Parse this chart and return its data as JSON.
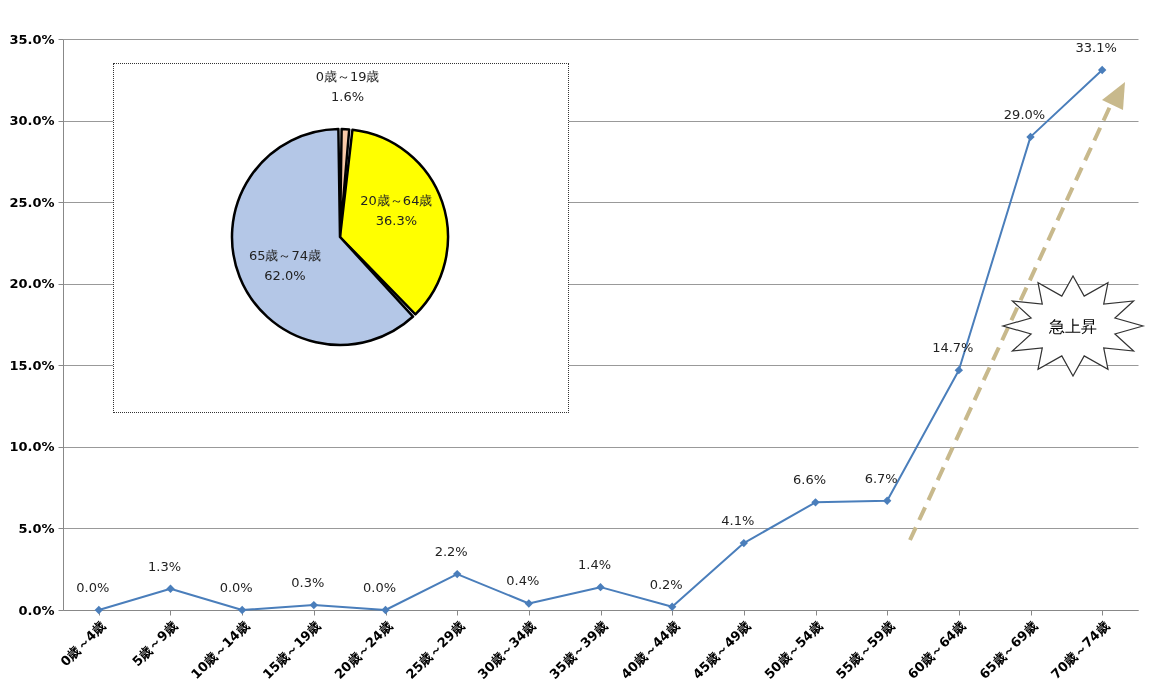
{
  "chart_data": [
    {
      "type": "line",
      "categories": [
        "0歳～4歳",
        "5歳～9歳",
        "10歳～14歳",
        "15歳～19歳",
        "20歳～24歳",
        "25歳～29歳",
        "30歳～34歳",
        "35歳～39歳",
        "40歳～44歳",
        "45歳～49歳",
        "50歳～54歳",
        "55歳～59歳",
        "60歳～64歳",
        "65歳～69歳",
        "70歳～74歳"
      ],
      "series": [
        {
          "color": "#4a7ebb",
          "values": [
            0,
            1.3,
            0,
            0.3,
            0,
            2.2,
            0.4,
            1.4,
            0.2,
            4.1,
            6.6,
            6.7,
            14.7,
            29.0,
            33.1
          ],
          "value_labels": [
            "0.0%",
            "1.3%",
            "0.0%",
            "0.3%",
            "0.0%",
            "2.2%",
            "0.4%",
            "1.4%",
            "0.2%",
            "4.1%",
            "6.6%",
            "6.7%",
            "14.7%",
            "29.0%",
            "33.1%"
          ]
        }
      ],
      "ylim": [
        0,
        35
      ],
      "yticks": [
        {
          "value": 0,
          "label": "0.0%"
        },
        {
          "value": 5,
          "label": "5.0%"
        },
        {
          "value": 10,
          "label": "10.0%"
        },
        {
          "value": 15,
          "label": "15.0%"
        },
        {
          "value": 20,
          "label": "20.0%"
        },
        {
          "value": 25,
          "label": "25.0%"
        },
        {
          "value": 30,
          "label": "30.0%"
        },
        {
          "value": 35,
          "label": "35.0%"
        }
      ],
      "grid": "y",
      "marker": "diamond",
      "line_style": "solid",
      "annotations": [
        "急上昇"
      ]
    },
    {
      "type": "pie",
      "categories": [
        "0歳～19歳",
        "20歳～64歳",
        "65歳～74歳"
      ],
      "values": [
        1.6,
        36.3,
        62.0
      ],
      "value_labels": [
        "1.6%",
        "36.3%",
        "62.0%"
      ],
      "colors": [
        "#f8c9a8",
        "#ffff00",
        "#b4c7e7"
      ]
    }
  ]
}
